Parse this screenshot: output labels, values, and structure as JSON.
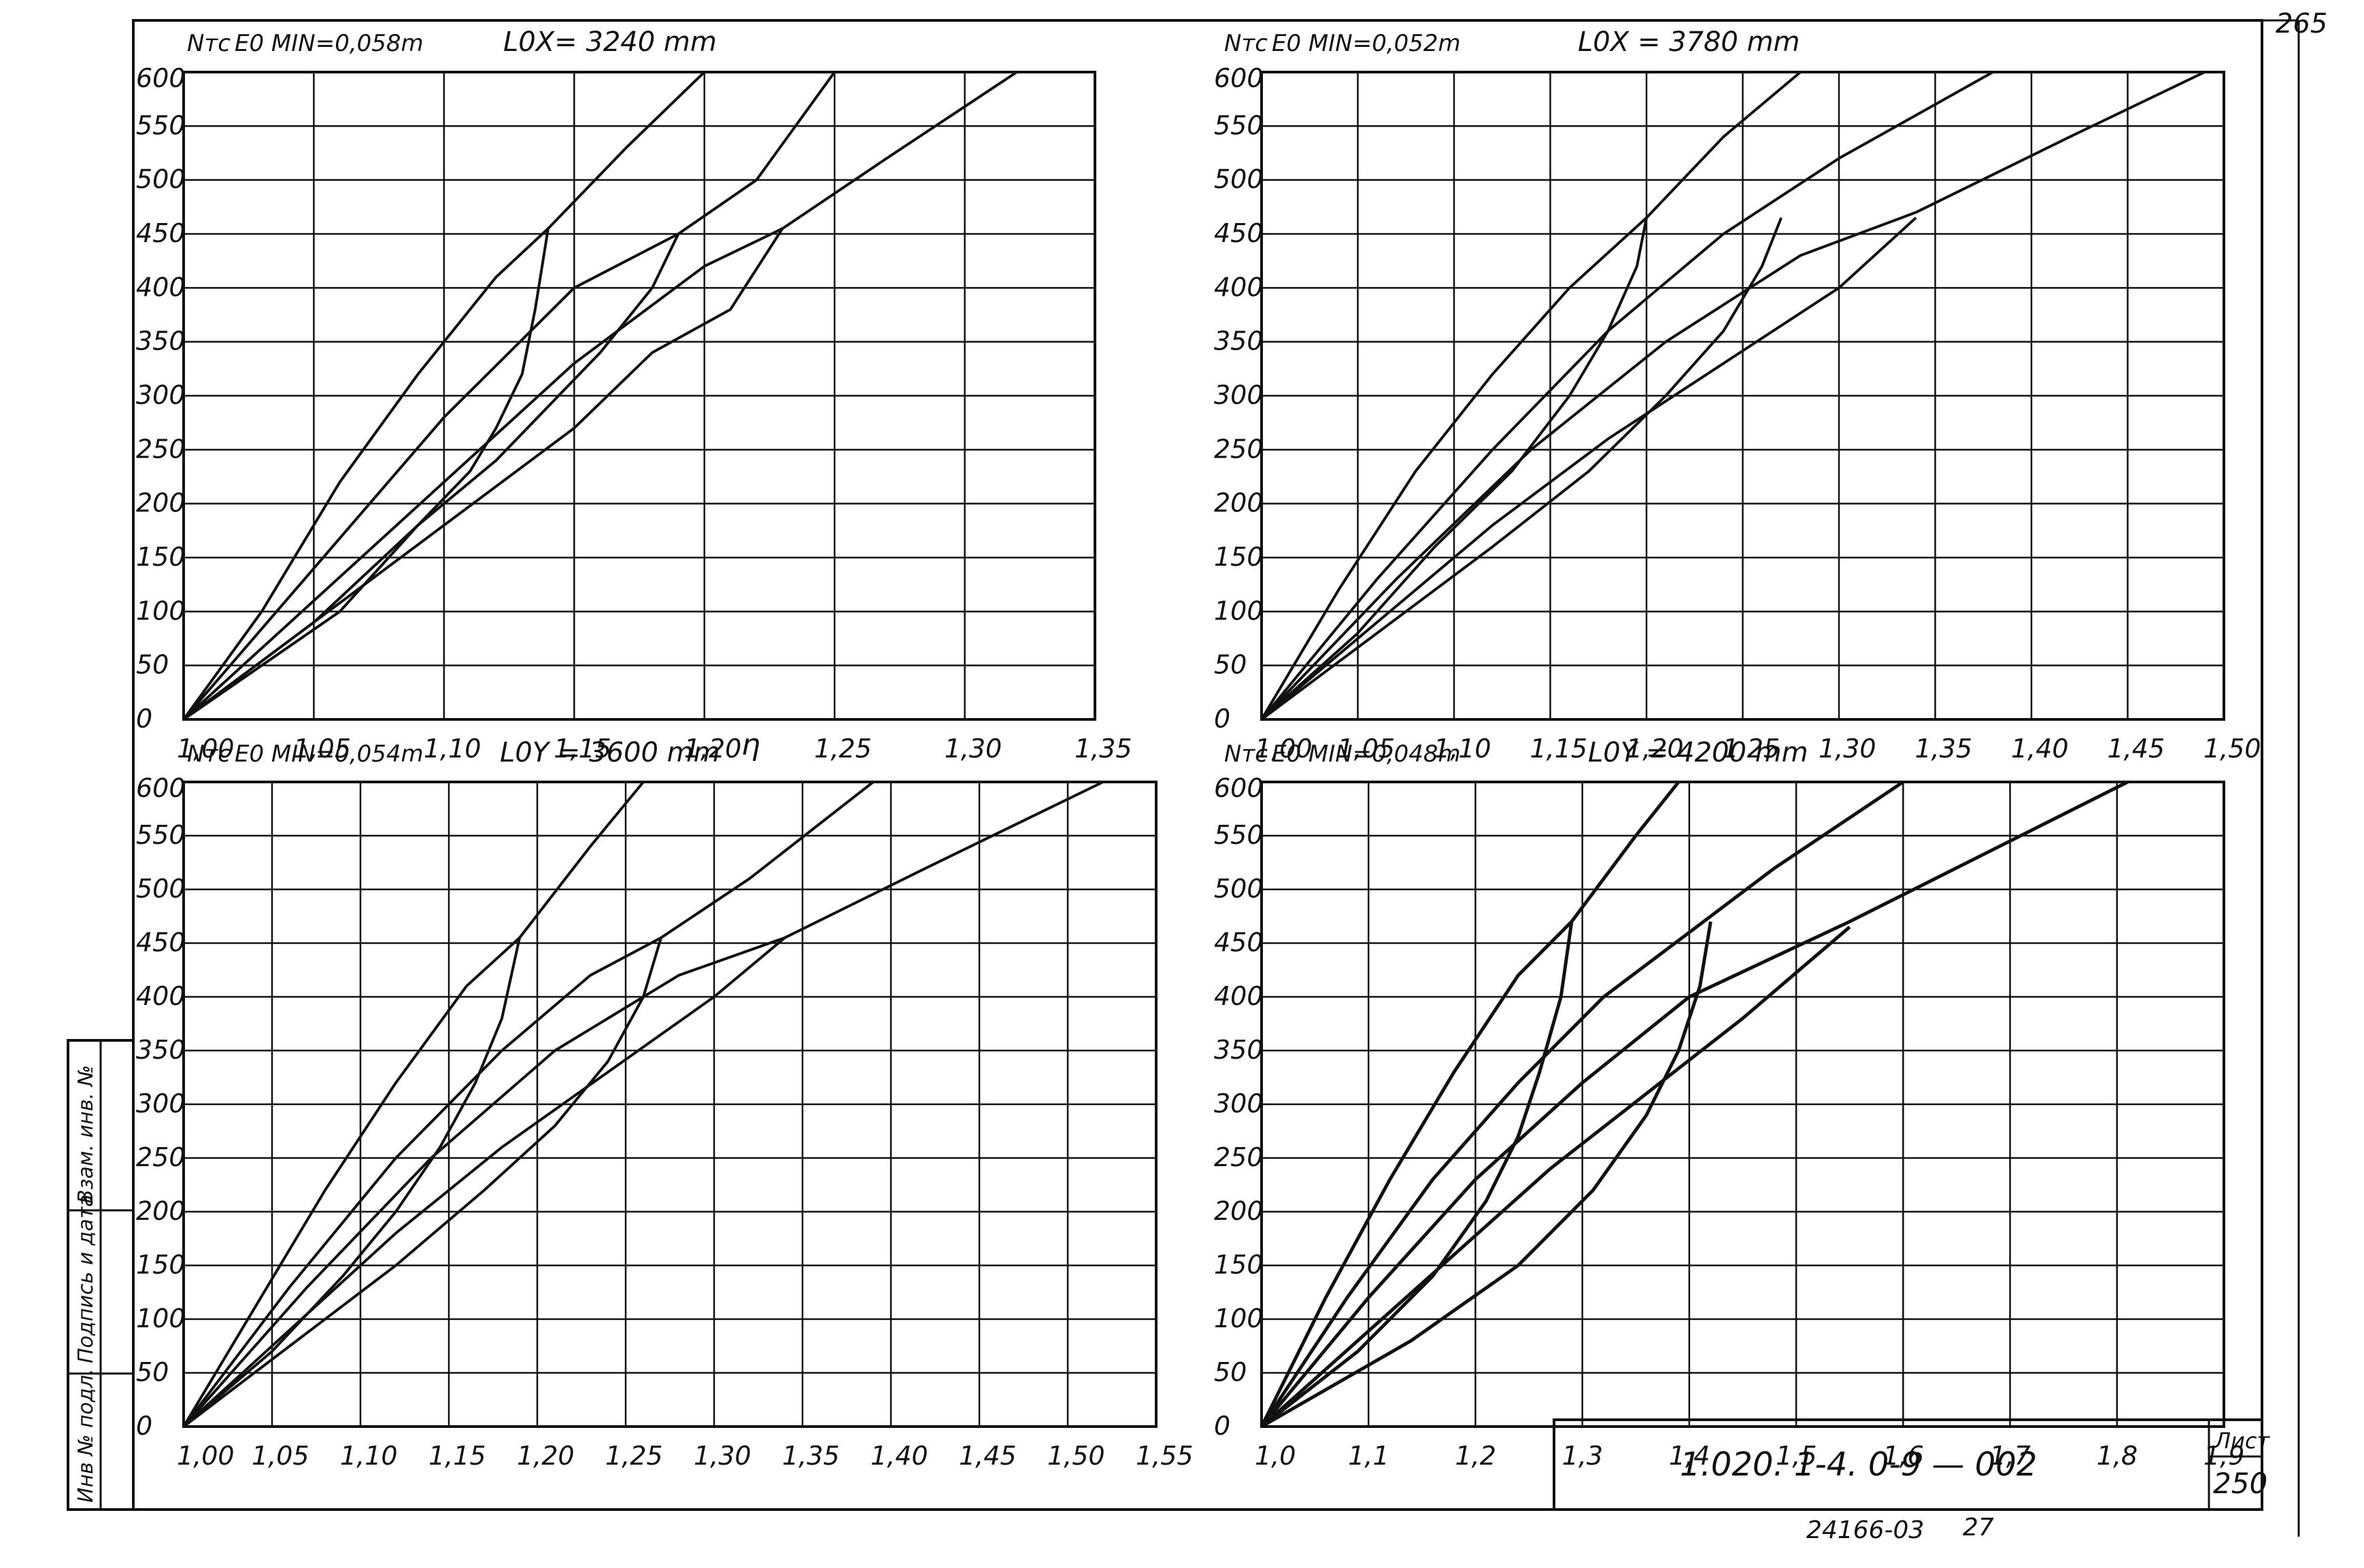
{
  "page_number_top": "265",
  "chart_data": [
    {
      "type": "line",
      "ylabel": "Nтс",
      "header_e0": "E0 MIN=0,058m",
      "header_l0": "L0X= 3240 mm",
      "xlabel": "η",
      "xlim": [
        1.0,
        1.35
      ],
      "ylim": [
        0,
        600
      ],
      "x_ticks": [
        "1,00",
        "1,05",
        "1,10",
        "1,15",
        "1,20",
        "1,25",
        "1,30",
        "1,35"
      ],
      "x_tick_values": [
        1.0,
        1.05,
        1.1,
        1.15,
        1.2,
        1.25,
        1.3,
        1.35
      ],
      "y_ticks": [
        "0",
        "50",
        "100",
        "150",
        "200",
        "250",
        "300",
        "350",
        "400",
        "450",
        "500",
        "550",
        "600"
      ],
      "y_tick_values": [
        0,
        50,
        100,
        150,
        200,
        250,
        300,
        350,
        400,
        450,
        500,
        550,
        600
      ],
      "grid": true,
      "series": [
        {
          "x": [
            1.0,
            1.03,
            1.06,
            1.09,
            1.12,
            1.14,
            1.17,
            1.2
          ],
          "y": [
            0,
            100,
            220,
            320,
            410,
            455,
            530,
            600
          ]
        },
        {
          "x": [
            1.0,
            1.05,
            1.1,
            1.15,
            1.19,
            1.22,
            1.25
          ],
          "y": [
            0,
            140,
            280,
            400,
            450,
            500,
            600
          ]
        },
        {
          "x": [
            1.0,
            1.05,
            1.1,
            1.15,
            1.2,
            1.23,
            1.27,
            1.32
          ],
          "y": [
            0,
            110,
            220,
            330,
            420,
            455,
            520,
            600
          ]
        },
        {
          "x": [
            1.0,
            1.05,
            1.1,
            1.15,
            1.18,
            1.21,
            1.23
          ],
          "y": [
            0,
            90,
            180,
            270,
            340,
            380,
            455
          ]
        },
        {
          "x": [
            1.14,
            1.135,
            1.13,
            1.12,
            1.11,
            1.09,
            1.06,
            1.0
          ],
          "y": [
            455,
            380,
            320,
            270,
            230,
            180,
            100,
            0
          ]
        },
        {
          "x": [
            1.19,
            1.18,
            1.16,
            1.14,
            1.12,
            1.09,
            1.05,
            1.0
          ],
          "y": [
            450,
            400,
            340,
            290,
            240,
            180,
            90,
            0
          ]
        }
      ]
    },
    {
      "type": "line",
      "ylabel": "Nтс",
      "header_e0": "E0 MIN=0,052m",
      "header_l0": "L0X = 3780 mm",
      "xlabel": "",
      "xlim": [
        1.0,
        1.5
      ],
      "ylim": [
        0,
        600
      ],
      "x_ticks": [
        "1,00",
        "1,05",
        "1,10",
        "1,15",
        "1,20",
        "1,25",
        "1,30",
        "1,35",
        "1,40",
        "1,45",
        "1,50"
      ],
      "x_tick_values": [
        1.0,
        1.05,
        1.1,
        1.15,
        1.2,
        1.25,
        1.3,
        1.35,
        1.4,
        1.45,
        1.5
      ],
      "y_ticks": [
        "0",
        "50",
        "100",
        "150",
        "200",
        "250",
        "300",
        "350",
        "400",
        "450",
        "500",
        "550",
        "600"
      ],
      "y_tick_values": [
        0,
        50,
        100,
        150,
        200,
        250,
        300,
        350,
        400,
        450,
        500,
        550,
        600
      ],
      "grid": true,
      "series": [
        {
          "x": [
            1.0,
            1.04,
            1.08,
            1.12,
            1.16,
            1.2,
            1.24,
            1.28
          ],
          "y": [
            0,
            120,
            230,
            320,
            400,
            465,
            540,
            600
          ]
        },
        {
          "x": [
            1.0,
            1.06,
            1.12,
            1.18,
            1.24,
            1.3,
            1.35,
            1.38
          ],
          "y": [
            0,
            130,
            250,
            360,
            450,
            520,
            570,
            600
          ]
        },
        {
          "x": [
            1.0,
            1.07,
            1.14,
            1.21,
            1.28,
            1.34,
            1.42,
            1.49
          ],
          "y": [
            0,
            130,
            250,
            350,
            430,
            470,
            540,
            600
          ]
        },
        {
          "x": [
            1.0,
            1.06,
            1.12,
            1.18,
            1.24,
            1.3,
            1.34
          ],
          "y": [
            0,
            90,
            180,
            260,
            330,
            400,
            465
          ]
        },
        {
          "x": [
            1.2,
            1.195,
            1.18,
            1.16,
            1.13,
            1.09,
            1.05,
            1.0
          ],
          "y": [
            465,
            420,
            360,
            300,
            230,
            160,
            80,
            0
          ]
        },
        {
          "x": [
            1.27,
            1.26,
            1.24,
            1.21,
            1.17,
            1.12,
            1.06,
            1.0
          ],
          "y": [
            465,
            420,
            360,
            300,
            230,
            160,
            80,
            0
          ]
        }
      ]
    },
    {
      "type": "line",
      "ylabel": "Nтс",
      "header_e0": "E0 MIN=0,054m",
      "header_l0": "L0Y = 3600 mm",
      "xlabel": "",
      "xlim": [
        1.0,
        1.55
      ],
      "ylim": [
        0,
        600
      ],
      "x_ticks": [
        "1,00",
        "1,05",
        "1,10",
        "1,15",
        "1,20",
        "1,25",
        "1,30",
        "1,35",
        "1,40",
        "1,45",
        "1,50",
        "1,55"
      ],
      "x_tick_values": [
        1.0,
        1.05,
        1.1,
        1.15,
        1.2,
        1.25,
        1.3,
        1.35,
        1.4,
        1.45,
        1.5,
        1.55
      ],
      "y_ticks": [
        "0",
        "50",
        "100",
        "150",
        "200",
        "250",
        "300",
        "350",
        "400",
        "450",
        "500",
        "550",
        "600"
      ],
      "y_tick_values": [
        0,
        50,
        100,
        150,
        200,
        250,
        300,
        350,
        400,
        450,
        500,
        550,
        600
      ],
      "grid": true,
      "series": [
        {
          "x": [
            1.0,
            1.04,
            1.08,
            1.12,
            1.16,
            1.19,
            1.23,
            1.26
          ],
          "y": [
            0,
            110,
            220,
            320,
            410,
            455,
            540,
            600
          ]
        },
        {
          "x": [
            1.0,
            1.06,
            1.12,
            1.18,
            1.23,
            1.27,
            1.32,
            1.39
          ],
          "y": [
            0,
            130,
            250,
            350,
            420,
            455,
            510,
            600
          ]
        },
        {
          "x": [
            1.0,
            1.07,
            1.14,
            1.21,
            1.28,
            1.34,
            1.42,
            1.52
          ],
          "y": [
            0,
            130,
            250,
            350,
            420,
            455,
            520,
            600
          ]
        },
        {
          "x": [
            1.0,
            1.06,
            1.12,
            1.18,
            1.24,
            1.3,
            1.34
          ],
          "y": [
            0,
            90,
            180,
            260,
            330,
            400,
            455
          ]
        },
        {
          "x": [
            1.19,
            1.18,
            1.165,
            1.145,
            1.12,
            1.09,
            1.05,
            1.0
          ],
          "y": [
            455,
            380,
            320,
            260,
            200,
            140,
            70,
            0
          ]
        },
        {
          "x": [
            1.27,
            1.26,
            1.24,
            1.21,
            1.17,
            1.12,
            1.06,
            1.0
          ],
          "y": [
            455,
            400,
            340,
            280,
            220,
            150,
            75,
            0
          ]
        }
      ]
    },
    {
      "type": "line",
      "ylabel": "Nтс",
      "header_e0": "E0 MIN=0,048m",
      "header_l0": "L0Y = 4200 mm",
      "xlabel": "",
      "xlim": [
        1.0,
        1.9
      ],
      "ylim": [
        0,
        600
      ],
      "x_ticks": [
        "1,0",
        "1,1",
        "1,2",
        "1,3",
        "1,4",
        "1,5",
        "1,6",
        "1,7",
        "1,8",
        "1,9"
      ],
      "x_tick_values": [
        1.0,
        1.1,
        1.2,
        1.3,
        1.4,
        1.5,
        1.6,
        1.7,
        1.8,
        1.9
      ],
      "y_ticks": [
        "0",
        "50",
        "100",
        "150",
        "200",
        "250",
        "300",
        "350",
        "400",
        "450",
        "500",
        "550",
        "600"
      ],
      "y_tick_values": [
        0,
        50,
        100,
        150,
        200,
        250,
        300,
        350,
        400,
        450,
        500,
        550,
        600
      ],
      "grid": true,
      "series": [
        {
          "x": [
            1.0,
            1.06,
            1.12,
            1.18,
            1.24,
            1.29,
            1.35,
            1.39
          ],
          "y": [
            0,
            120,
            230,
            330,
            420,
            470,
            550,
            600
          ]
        },
        {
          "x": [
            1.0,
            1.08,
            1.16,
            1.24,
            1.32,
            1.4,
            1.48,
            1.6
          ],
          "y": [
            0,
            120,
            230,
            320,
            400,
            460,
            520,
            600
          ]
        },
        {
          "x": [
            1.0,
            1.1,
            1.2,
            1.3,
            1.4,
            1.55,
            1.65,
            1.81
          ],
          "y": [
            0,
            120,
            230,
            320,
            400,
            470,
            520,
            600
          ]
        },
        {
          "x": [
            1.0,
            1.09,
            1.18,
            1.27,
            1.36,
            1.45,
            1.55
          ],
          "y": [
            0,
            80,
            160,
            240,
            310,
            380,
            465
          ]
        },
        {
          "x": [
            1.29,
            1.28,
            1.26,
            1.24,
            1.21,
            1.16,
            1.09,
            1.0
          ],
          "y": [
            470,
            400,
            330,
            270,
            210,
            140,
            70,
            0
          ]
        },
        {
          "x": [
            1.42,
            1.41,
            1.39,
            1.36,
            1.31,
            1.24,
            1.14,
            1.0
          ],
          "y": [
            470,
            410,
            350,
            290,
            220,
            150,
            80,
            0
          ]
        }
      ]
    }
  ],
  "stamp": {
    "code": "1.020. 1-4.   0-9 — 002",
    "sheet_label": "Лист",
    "sheet_number": "250",
    "bottom_code": "24166-03",
    "bottom_number": "27"
  },
  "side_labels": [
    "Инв № подл.",
    "Подпись и дата",
    "Взам. инв. №"
  ]
}
